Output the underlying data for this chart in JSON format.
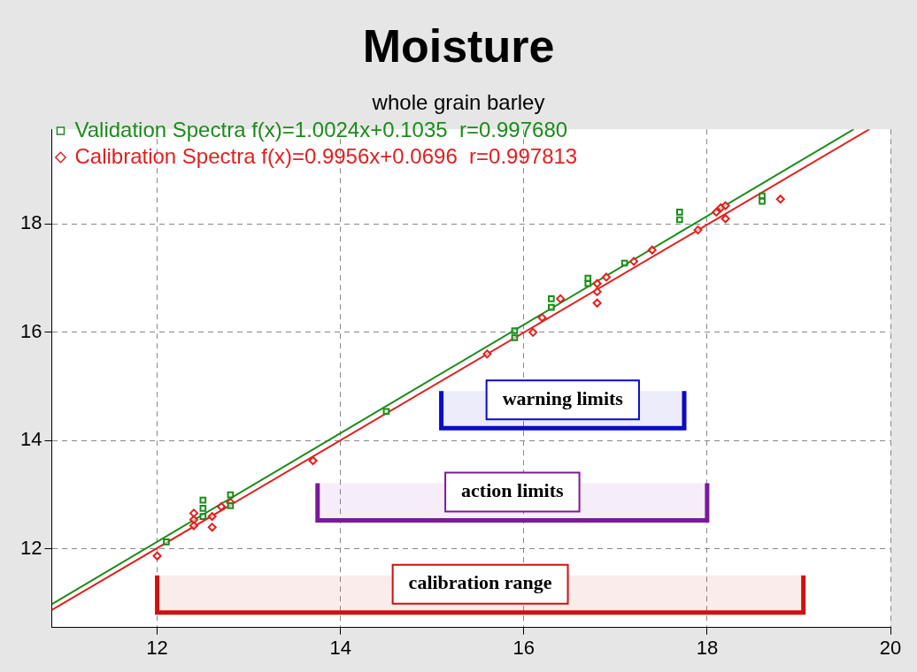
{
  "chart_data": {
    "type": "scatter",
    "title": "Moisture",
    "subtitle": "whole grain barley",
    "xlim": [
      10.85,
      20
    ],
    "xticks": [
      12,
      14,
      16,
      18,
      20
    ],
    "ylim": [
      10.55,
      19.75
    ],
    "yticks": [
      12,
      14,
      16,
      18
    ],
    "grid": true,
    "line_style": "dashed",
    "legend": "top left",
    "series": [
      {
        "name": "Validation Spectra f(x)=1.0024x+0.1035  r=0.997680",
        "color": "#1a8c1a",
        "marker": "square",
        "x": [
          12.1,
          12.5,
          12.5,
          12.5,
          12.8,
          12.8,
          14.5,
          15.9,
          15.9,
          16.3,
          16.3,
          16.7,
          16.7,
          17.1,
          17.7,
          17.7,
          18.6,
          18.6
        ],
        "values": [
          12.13,
          12.9,
          12.75,
          12.6,
          13.0,
          12.8,
          14.54,
          16.03,
          15.9,
          16.62,
          16.46,
          17.0,
          16.9,
          17.28,
          18.22,
          18.08,
          18.52,
          18.42
        ]
      },
      {
        "name": "Calibration Spectra f(x)=0.9956x+0.0696  r=0.997813",
        "color": "#e02020",
        "marker": "diamond",
        "x": [
          12.0,
          12.4,
          12.4,
          12.4,
          12.6,
          12.6,
          12.7,
          12.8,
          13.7,
          15.6,
          16.1,
          16.2,
          16.4,
          16.8,
          16.8,
          16.8,
          16.9,
          17.2,
          17.4,
          17.9,
          18.1,
          18.15,
          18.2,
          18.2,
          18.8
        ],
        "values": [
          11.87,
          12.54,
          12.43,
          12.66,
          12.6,
          12.4,
          12.78,
          12.86,
          13.63,
          15.6,
          16.0,
          16.27,
          16.62,
          16.54,
          16.75,
          16.9,
          17.02,
          17.31,
          17.52,
          17.89,
          18.22,
          18.3,
          18.34,
          18.1,
          18.46
        ]
      },
      {
        "type": "line",
        "color": "#1a8c1a",
        "marker": "none",
        "line_style": "solid",
        "x": [
          10.85,
          19.6
        ],
        "values": [
          10.98,
          19.75
        ]
      },
      {
        "type": "line",
        "color": "#e02020",
        "marker": "none",
        "line_style": "solid",
        "x": [
          10.85,
          19.77
        ],
        "values": [
          10.87,
          19.75
        ]
      }
    ],
    "bands": [
      {
        "axis": "x",
        "from": 15.1,
        "to": 17.75,
        "label": "warning limits",
        "color": "#0a0ac8"
      },
      {
        "axis": "x",
        "from": 13.75,
        "to": 18.0,
        "label": "action limits",
        "color": "#7a1a9a"
      },
      {
        "axis": "x",
        "from": 12.0,
        "to": 19.05,
        "label": "calibration range",
        "color": "#d01010"
      }
    ]
  }
}
